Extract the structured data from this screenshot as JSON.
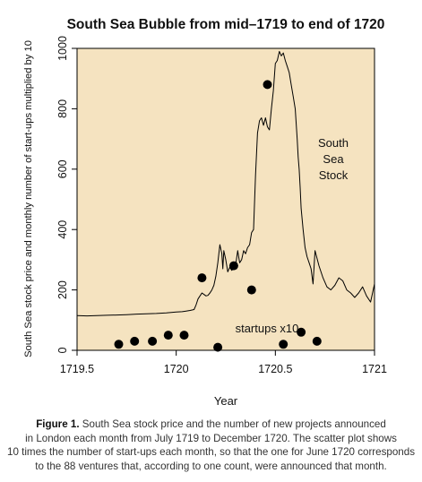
{
  "chart_data": {
    "type": "line",
    "title": "South Sea Bubble from mid–1719 to end of 1720",
    "xlabel": "Year",
    "ylabel": "South Sea stock price and monthly number of start-ups multiplied by 10",
    "xlim": [
      1719.5,
      1721
    ],
    "ylim": [
      0,
      1000
    ],
    "x_ticks": [
      1719.5,
      1720,
      1720.5,
      1721
    ],
    "x_tick_labels": [
      "1719.5",
      "1720",
      "1720.5",
      "1721"
    ],
    "y_ticks": [
      0,
      200,
      400,
      600,
      800,
      1000
    ],
    "y_tick_labels": [
      "0",
      "200",
      "400",
      "600",
      "800",
      "1000"
    ],
    "plot_background": "#f5e3c0",
    "grid": false,
    "series": [
      {
        "name": "South Sea Stock",
        "kind": "line",
        "label_lines": [
          "South",
          "Sea",
          "Stock"
        ],
        "x": [
          1719.5,
          1719.55,
          1719.6,
          1719.65,
          1719.7,
          1719.75,
          1719.8,
          1719.85,
          1719.9,
          1719.95,
          1720.0,
          1720.03,
          1720.05,
          1720.07,
          1720.09,
          1720.1,
          1720.11,
          1720.12,
          1720.125,
          1720.13,
          1720.14,
          1720.15,
          1720.16,
          1720.17,
          1720.175,
          1720.18,
          1720.19,
          1720.2,
          1720.21,
          1720.22,
          1720.23,
          1720.235,
          1720.24,
          1720.25,
          1720.26,
          1720.27,
          1720.28,
          1720.29,
          1720.3,
          1720.31,
          1720.32,
          1720.33,
          1720.34,
          1720.35,
          1720.36,
          1720.37,
          1720.38,
          1720.39,
          1720.4,
          1720.41,
          1720.42,
          1720.43,
          1720.44,
          1720.45,
          1720.46,
          1720.47,
          1720.48,
          1720.49,
          1720.5,
          1720.51,
          1720.52,
          1720.53,
          1720.54,
          1720.55,
          1720.56,
          1720.57,
          1720.58,
          1720.59,
          1720.6,
          1720.61,
          1720.615,
          1720.62,
          1720.625,
          1720.63,
          1720.64,
          1720.65,
          1720.66,
          1720.67,
          1720.68,
          1720.69,
          1720.7,
          1720.72,
          1720.74,
          1720.76,
          1720.78,
          1720.8,
          1720.82,
          1720.84,
          1720.86,
          1720.88,
          1720.9,
          1720.92,
          1720.94,
          1720.96,
          1720.98,
          1721.0
        ],
        "y": [
          115,
          114,
          115,
          116,
          117,
          118,
          120,
          121,
          122,
          124,
          127,
          128,
          130,
          132,
          135,
          150,
          170,
          180,
          185,
          190,
          185,
          180,
          182,
          190,
          195,
          200,
          215,
          245,
          290,
          350,
          320,
          270,
          330,
          300,
          260,
          275,
          265,
          270,
          285,
          330,
          290,
          300,
          330,
          320,
          340,
          350,
          390,
          400,
          580,
          720,
          760,
          770,
          745,
          770,
          740,
          730,
          800,
          860,
          950,
          960,
          990,
          975,
          985,
          960,
          940,
          920,
          880,
          840,
          800,
          700,
          640,
          600,
          540,
          470,
          400,
          340,
          310,
          290,
          270,
          220,
          330,
          280,
          240,
          210,
          200,
          215,
          240,
          230,
          200,
          190,
          175,
          190,
          210,
          180,
          160,
          220
        ]
      },
      {
        "name": "startups x10",
        "kind": "scatter",
        "x": [
          1719.71,
          1719.79,
          1719.88,
          1719.96,
          1720.04,
          1720.13,
          1720.21,
          1720.29,
          1720.38,
          1720.46,
          1720.54,
          1720.63,
          1720.71
        ],
        "y": [
          20,
          30,
          30,
          50,
          50,
          240,
          10,
          280,
          200,
          880,
          20,
          60,
          30
        ]
      }
    ]
  },
  "caption": {
    "label": "Figure 1.",
    "lines": [
      " South Sea stock price and the number of new projects announced",
      "in London each month from July 1719 to December 1720. The scatter plot shows",
      "10 times the number of start-ups each month, so that the one for June 1720 corresponds",
      "to the 88 ventures that, according to one count, were announced that month."
    ]
  }
}
